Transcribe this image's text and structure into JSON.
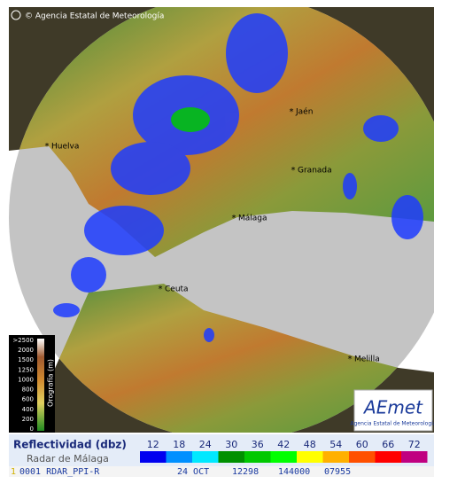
{
  "header": {
    "copyright": "© Agencia Estatal de Meteorología"
  },
  "map": {
    "cities": [
      {
        "label": "Jaén"
      },
      {
        "label": "Huelva"
      },
      {
        "label": "Granada"
      },
      {
        "label": "Málaga"
      },
      {
        "label": "Ceuta"
      },
      {
        "label": "Melilla"
      }
    ]
  },
  "orography": {
    "title": "Orografía (m)",
    "ticks": [
      ">2500",
      "2000",
      "1500",
      "1250",
      "1000",
      "800",
      "600",
      "400",
      "200",
      "0"
    ]
  },
  "logo": {
    "name": "AEmet",
    "subtitle": "Agencia Estatal de Meteorología"
  },
  "legend": {
    "title": "Reflectividad (dbz)",
    "subtitle": "Radar de Málaga",
    "scale": [
      {
        "label": 12,
        "color": "#0000f0"
      },
      {
        "label": 18,
        "color": "#0090ff"
      },
      {
        "label": 24,
        "color": "#00e8ff"
      },
      {
        "label": 30,
        "color": "#009000"
      },
      {
        "label": 36,
        "color": "#00c800"
      },
      {
        "label": 42,
        "color": "#00ff00"
      },
      {
        "label": 48,
        "color": "#ffff00"
      },
      {
        "label": 54,
        "color": "#ffb000"
      },
      {
        "label": 60,
        "color": "#ff5000"
      },
      {
        "label": 66,
        "color": "#ff0000"
      },
      {
        "label": 72,
        "color": "#c00080"
      }
    ]
  },
  "status": {
    "index": "1",
    "product": "0001 RDAR_PPI-R",
    "date": "24 OCT",
    "fields": [
      "12298",
      "144000",
      "07955"
    ]
  }
}
